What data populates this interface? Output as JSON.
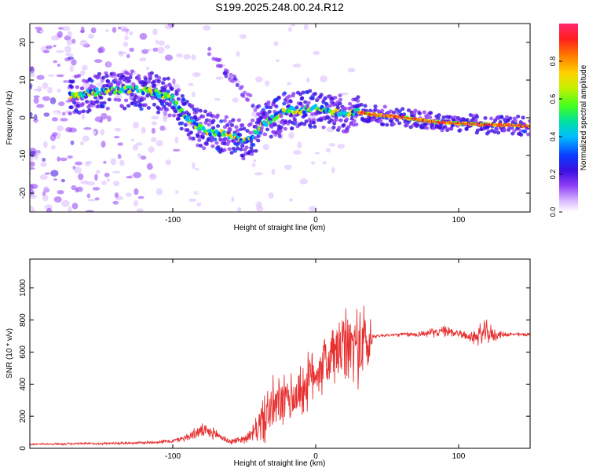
{
  "title": "S199.2025.248.00.24.R12",
  "colors": {
    "snr_line": "#e83030",
    "axis": "#000000",
    "colormap": [
      "#ffffff",
      "#d9b8ff",
      "#8f3df5",
      "#3b0fe0",
      "#0a3cff",
      "#00bfff",
      "#00e0a0",
      "#40ff20",
      "#c8f000",
      "#ffd000",
      "#ff7a00",
      "#ff1d1d",
      "#ff2a6e"
    ]
  },
  "chart_data": [
    {
      "type": "heatmap",
      "name": "spectrogram",
      "xlabel": "Height of straight line (km)",
      "ylabel": "Frequency (Hz)",
      "xlim": [
        -200,
        150
      ],
      "ylim": [
        -25,
        25
      ],
      "x_ticks": [
        -100,
        0,
        100
      ],
      "x_tick_labels": [
        "-100",
        "0",
        "100"
      ],
      "y_ticks": [
        -20,
        -10,
        0,
        10,
        20
      ],
      "y_tick_labels": [
        "-20",
        "-10",
        "0",
        "10",
        "20"
      ],
      "colorbar": {
        "label": "Normalized spectral amplitude",
        "range": [
          0,
          1
        ],
        "ticks": [
          0.0,
          0.2,
          0.4,
          0.6,
          0.8
        ],
        "tick_labels": [
          "0.0",
          "0.2",
          "0.4",
          "0.6",
          "0.8"
        ]
      },
      "ridge": {
        "x": [
          -170,
          -150,
          -130,
          -115,
          -100,
          -90,
          -80,
          -70,
          -60,
          -50,
          -45,
          -40,
          -30,
          -20,
          -10,
          0,
          10,
          20,
          30,
          40,
          60,
          80,
          100,
          120,
          150
        ],
        "y": [
          6,
          7,
          7.5,
          7,
          5,
          0,
          -3,
          -4,
          -4.5,
          -6,
          -6,
          -3,
          0,
          2,
          2,
          2.5,
          2,
          1,
          1.5,
          0.8,
          0.2,
          -1,
          -1.5,
          -1.8,
          -2.2
        ]
      }
    },
    {
      "type": "line",
      "name": "snr",
      "xlabel": "Height of straight line (km)",
      "ylabel": "SNR (10 * v/v)",
      "xlim": [
        -200,
        150
      ],
      "ylim": [
        0,
        1180
      ],
      "x_ticks": [
        -100,
        0,
        100
      ],
      "x_tick_labels": [
        "-100",
        "0",
        "100"
      ],
      "y_ticks": [
        0,
        200,
        400,
        600,
        800,
        1000
      ],
      "y_tick_labels": [
        "0",
        "200",
        "400",
        "600",
        "800",
        "1000"
      ],
      "envelope": {
        "x": [
          -200,
          -150,
          -120,
          -100,
          -90,
          -80,
          -70,
          -60,
          -50,
          -45,
          -40,
          -35,
          -30,
          -25,
          -20,
          -15,
          -10,
          -5,
          0,
          5,
          10,
          15,
          20,
          25,
          30,
          35,
          38,
          40,
          50,
          60,
          70,
          80,
          90,
          100,
          105,
          110,
          115,
          120,
          125,
          130,
          140,
          150
        ],
        "mean": [
          25,
          30,
          35,
          45,
          70,
          110,
          90,
          40,
          60,
          80,
          140,
          200,
          250,
          280,
          300,
          320,
          360,
          420,
          480,
          520,
          560,
          600,
          620,
          640,
          650,
          650,
          640,
          700,
          705,
          710,
          710,
          720,
          730,
          720,
          700,
          690,
          710,
          720,
          705,
          710,
          710,
          710
        ],
        "spread": [
          8,
          10,
          12,
          15,
          30,
          50,
          40,
          20,
          30,
          50,
          120,
          200,
          220,
          200,
          180,
          200,
          200,
          220,
          200,
          220,
          250,
          260,
          280,
          300,
          300,
          320,
          250,
          15,
          12,
          15,
          20,
          30,
          40,
          35,
          25,
          50,
          80,
          90,
          50,
          20,
          15,
          15
        ]
      }
    }
  ]
}
